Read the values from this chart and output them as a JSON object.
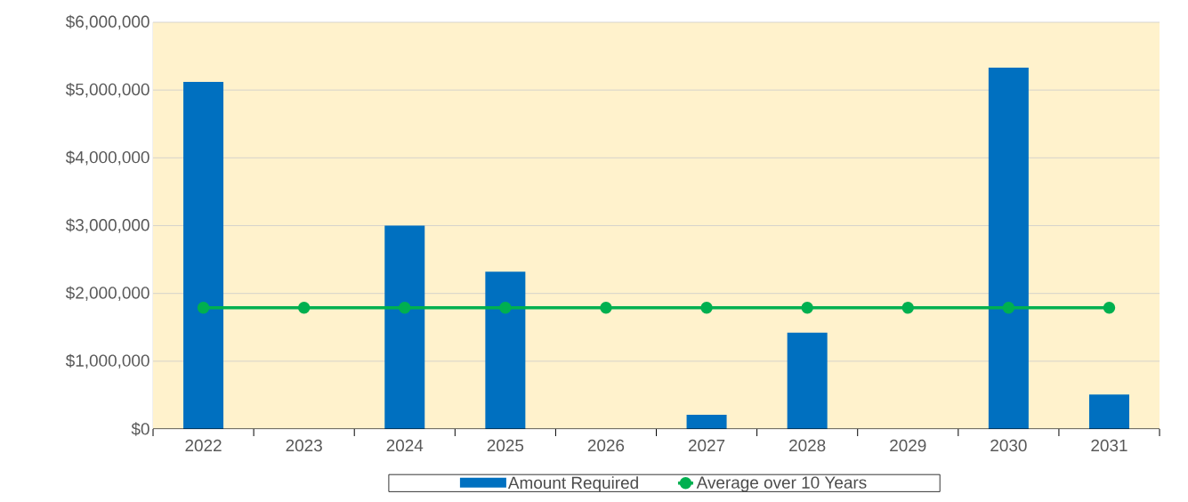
{
  "chart_data": {
    "type": "bar",
    "categories": [
      "2022",
      "2023",
      "2024",
      "2025",
      "2026",
      "2027",
      "2028",
      "2029",
      "2030",
      "2031"
    ],
    "series": [
      {
        "name": "Amount Required",
        "color": "#0070c0",
        "values": [
          5120000,
          0,
          3000000,
          2320000,
          0,
          210000,
          1420000,
          0,
          5330000,
          510000
        ]
      },
      {
        "name": "Average over 10 Years",
        "type": "line",
        "color": "#00b050",
        "marker": "circle",
        "values": [
          1790000,
          1790000,
          1790000,
          1790000,
          1790000,
          1790000,
          1790000,
          1790000,
          1790000,
          1790000
        ]
      }
    ],
    "ylim": [
      0,
      6000000
    ],
    "yticks": [
      {
        "value": 0,
        "label": "$0"
      },
      {
        "value": 1000000,
        "label": "$1,000,000"
      },
      {
        "value": 2000000,
        "label": "$2,000,000"
      },
      {
        "value": 3000000,
        "label": "$3,000,000"
      },
      {
        "value": 4000000,
        "label": "$4,000,000"
      },
      {
        "value": 5000000,
        "label": "$5,000,000"
      },
      {
        "value": 6000000,
        "label": "$6,000,000"
      }
    ],
    "grid": "y",
    "legend": "bottom"
  }
}
